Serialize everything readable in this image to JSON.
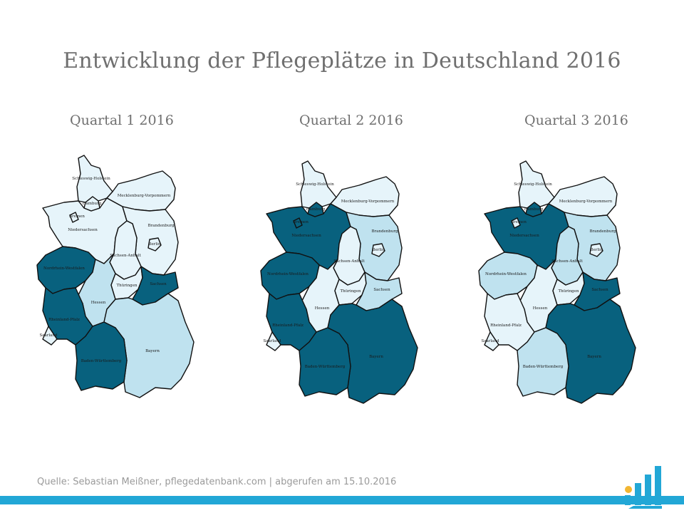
{
  "title": "Entwicklung der Pflegeplätze in Deutschland 2016",
  "source": "Quelle: Sebastian Meißner, pflegedatenbank.com | abgerufen am 15.10.2016",
  "colors": {
    "light": "#e6f4fa",
    "medium": "#bfe2ef",
    "dark": "#08617e",
    "accent": "#22a7d6",
    "logo_dot": "#f2b632"
  },
  "maps": [
    {
      "title": "Quartal 1 2016",
      "labels": {
        "sh": "Schleswig-Holstein",
        "hh": "Hamburg",
        "hb": "Bremen",
        "ni": "Niedersachsen",
        "mv": "Mecklenburg-Vorpommern",
        "bb": "Brandenburg",
        "be": "Berlin",
        "st": "Sachsen-Anhalt",
        "nw": "Nordrhein-Westfalen",
        "he": "Hessen",
        "th": "Thüringen",
        "sn": "Sachsen",
        "rp": "Rheinland-Pfalz",
        "sl": "Saarland",
        "bw": "Baden-Württemberg",
        "by": "Bayern"
      },
      "shades": {
        "sh": "light",
        "hh": "light",
        "hb": "light",
        "ni": "light",
        "mv": "light",
        "bb": "light",
        "be": "light",
        "st": "light",
        "nw": "dark",
        "he": "medium",
        "th": "light",
        "sn": "dark",
        "rp": "dark",
        "sl": "light",
        "bw": "dark",
        "by": "medium"
      }
    },
    {
      "title": "Quartal 2 2016",
      "labels": {
        "sh": "Schleswig-Holstein",
        "hh": "Hamburg",
        "hb": "Bremen",
        "ni": "Niedersachsen",
        "mv": "Mecklenburg-Vorpommern",
        "bb": "Brandenburg",
        "be": "Berlin",
        "st": "Sachsen-Anhalt",
        "nw": "Nordrhein-Westfalen",
        "he": "Hessen",
        "th": "Thüringen",
        "sn": "Sachsen",
        "rp": "Rheinland-Pfalz",
        "sl": "Saarland",
        "bw": "Baden-Württemberg",
        "by": "Bayern"
      },
      "shades": {
        "sh": "light",
        "hh": "dark",
        "hb": "dark",
        "ni": "dark",
        "mv": "light",
        "bb": "medium",
        "be": "light",
        "st": "light",
        "nw": "dark",
        "he": "light",
        "th": "light",
        "sn": "medium",
        "rp": "dark",
        "sl": "light",
        "bw": "dark",
        "by": "dark"
      }
    },
    {
      "title": "Quartal 3 2016",
      "labels": {
        "sh": "Schleswig-Holstein",
        "hh": "Hamburg",
        "hb": "Bremen",
        "ni": "Niedersachsen",
        "mv": "Mecklenburg-Vorpommern",
        "bb": "Brandenburg",
        "be": "Berlin",
        "st": "Sachsen-Anhalt",
        "nw": "Nordrhein-Westfalen",
        "he": "Hessen",
        "th": "Thüringen",
        "sn": "Sachsen",
        "rp": "Rheinland-Pfalz",
        "sl": "Saarland",
        "bw": "Baden-Württemberg",
        "by": "Bayern"
      },
      "shades": {
        "sh": "light",
        "hh": "dark",
        "hb": "light",
        "ni": "dark",
        "mv": "light",
        "bb": "medium",
        "be": "light",
        "st": "medium",
        "nw": "medium",
        "he": "light",
        "th": "light",
        "sn": "dark",
        "rp": "light",
        "sl": "light",
        "bw": "medium",
        "by": "dark"
      }
    }
  ]
}
